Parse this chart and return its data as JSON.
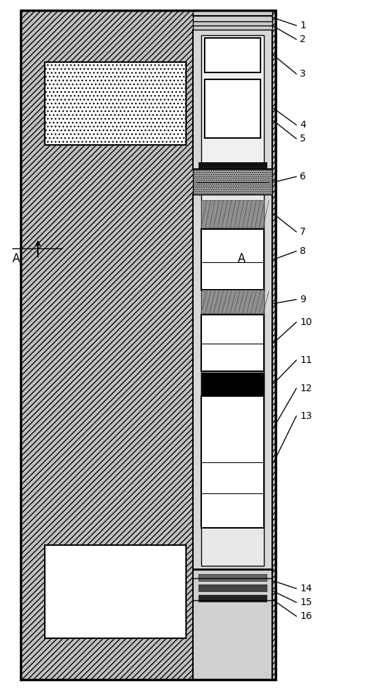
{
  "fig_width": 5.5,
  "fig_height": 10.0,
  "dpi": 100,
  "bg_color": "#ffffff",
  "body_fill": "#b8b8b8",
  "body_hatch_color": "#888888",
  "inner_bg": "#e0e0e0",
  "white": "#ffffff",
  "black": "#000000",
  "gray_mid": "#a0a0a0",
  "gray_light_dot": "#cccccc",
  "label_pairs": [
    [
      "1",
      0.96
    ],
    [
      "2",
      0.945
    ],
    [
      "3",
      0.895
    ],
    [
      "4",
      0.82
    ],
    [
      "5",
      0.8
    ],
    [
      "6",
      0.745
    ],
    [
      "7",
      0.665
    ],
    [
      "8",
      0.638
    ],
    [
      "9",
      0.568
    ],
    [
      "10",
      0.535
    ],
    [
      "11",
      0.48
    ],
    [
      "12",
      0.438
    ],
    [
      "13",
      0.398
    ],
    [
      "14",
      0.148
    ],
    [
      "15",
      0.128
    ],
    [
      "16",
      0.108
    ]
  ]
}
